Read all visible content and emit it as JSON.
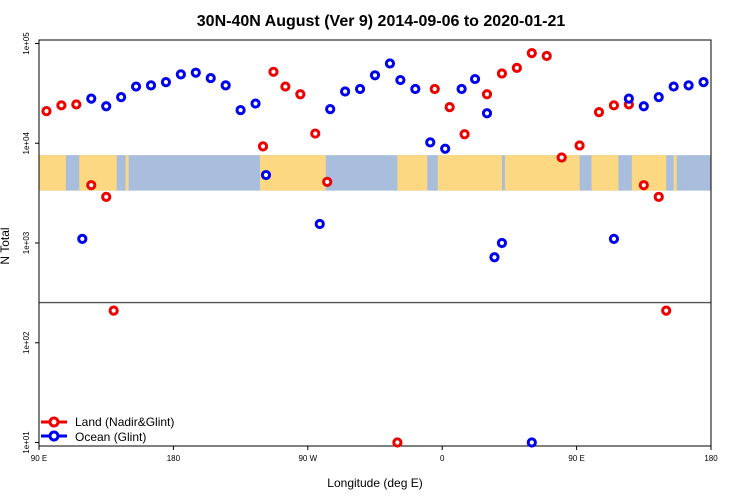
{
  "chart_data": {
    "type": "scatter",
    "title": "30N-40N August (Ver 9)   2014-09-06 to 2020-01-21",
    "xlabel": "Longitude (deg E)",
    "ylabel": "N Total",
    "x_ticks": [
      {
        "value": 90,
        "label": "90 E"
      },
      {
        "value": 180,
        "label": "180"
      },
      {
        "value": 270,
        "label": "90 W"
      },
      {
        "value": 360,
        "label": "0"
      },
      {
        "value": 450,
        "label": "90 E"
      },
      {
        "value": 540,
        "label": "180"
      }
    ],
    "y_ticks": [
      {
        "value": 10,
        "label": "1e+01"
      },
      {
        "value": 100,
        "label": "1e+02"
      },
      {
        "value": 1000,
        "label": "1e+03"
      },
      {
        "value": 10000,
        "label": "1e+04"
      },
      {
        "value": 100000,
        "label": "1e+05"
      }
    ],
    "xlim": [
      90,
      540
    ],
    "ylim_log10": [
      0.965,
      5.035
    ],
    "reference_line_y": 253,
    "map_band_y": [
      3350,
      7600
    ],
    "series": [
      {
        "name": "Land (Nadir&Glint)",
        "color": "#ee0000",
        "points": [
          [
            95,
            21000
          ],
          [
            105,
            24000
          ],
          [
            115,
            24500
          ],
          [
            125,
            3800
          ],
          [
            135,
            2900
          ],
          [
            140,
            210
          ],
          [
            240,
            9300
          ],
          [
            247,
            52000
          ],
          [
            255,
            37000
          ],
          [
            265,
            31000
          ],
          [
            275,
            12500
          ],
          [
            283,
            4100
          ],
          [
            330,
            10
          ],
          [
            355,
            35000
          ],
          [
            365,
            23000
          ],
          [
            375,
            12300
          ],
          [
            390,
            31000
          ],
          [
            400,
            50000
          ],
          [
            410,
            57000
          ],
          [
            420,
            80000
          ],
          [
            430,
            75000
          ],
          [
            440,
            7200
          ],
          [
            452,
            9500
          ],
          [
            465,
            20500
          ],
          [
            475,
            24000
          ],
          [
            485,
            24500
          ],
          [
            495,
            3800
          ],
          [
            505,
            2900
          ],
          [
            510,
            210
          ]
        ]
      },
      {
        "name": "Ocean (Glint)",
        "color": "#0000ee",
        "points": [
          [
            119,
            1100
          ],
          [
            125,
            28000
          ],
          [
            135,
            23500
          ],
          [
            145,
            29000
          ],
          [
            155,
            37000
          ],
          [
            165,
            38000
          ],
          [
            175,
            41000
          ],
          [
            185,
            49000
          ],
          [
            195,
            51000
          ],
          [
            205,
            45000
          ],
          [
            215,
            38000
          ],
          [
            225,
            21500
          ],
          [
            235,
            25000
          ],
          [
            242,
            4800
          ],
          [
            278,
            1550
          ],
          [
            285,
            22000
          ],
          [
            295,
            33000
          ],
          [
            305,
            35000
          ],
          [
            315,
            48000
          ],
          [
            325,
            63000
          ],
          [
            332,
            43000
          ],
          [
            342,
            35000
          ],
          [
            352,
            10200
          ],
          [
            362,
            8800
          ],
          [
            373,
            35000
          ],
          [
            382,
            44000
          ],
          [
            390,
            20000
          ],
          [
            395,
            720
          ],
          [
            400,
            1000
          ],
          [
            420,
            10
          ],
          [
            475,
            1100
          ],
          [
            485,
            28000
          ],
          [
            495,
            23500
          ],
          [
            505,
            29000
          ],
          [
            515,
            37000
          ],
          [
            525,
            38000
          ],
          [
            535,
            41000
          ]
        ]
      }
    ]
  }
}
